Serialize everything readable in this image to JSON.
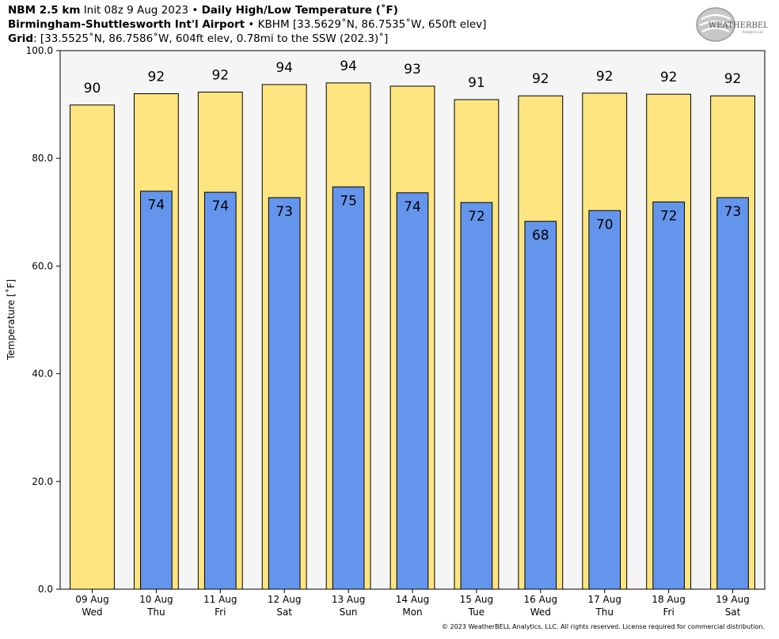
{
  "header": {
    "line1": {
      "model": "NBM 2.5 km",
      "init": "Init 08z 9 Aug 2023",
      "sep": "•",
      "product": "Daily High/Low Temperature (˚F)"
    },
    "line2": {
      "location": "Birmingham-Shuttlesworth Int'l Airport",
      "sep": "•",
      "station": "KBHM [33.5629˚N, 86.7535˚W, 650ft elev]"
    },
    "line3": {
      "label": "Grid",
      "value": ": [33.5525˚N, 86.7586˚W, 604ft elev, 0.78mi to the SSW (202.3)˚]"
    }
  },
  "logo": {
    "text": "WEATHERBELL",
    "sub": "Analytics LLC"
  },
  "footer": "© 2023 WeatherBELL Analytics, LLC. All rights reserved. License required for commercial distribution.",
  "colors": {
    "high": "#ffe57f",
    "low": "#6495ed",
    "plot_bg": "#f5f5f5",
    "edge": "#000000"
  },
  "chart_data": {
    "type": "bar",
    "ylabel": "Temperature [˚F]",
    "ylim": [
      0,
      100
    ],
    "yticks": [
      "0.0",
      "20.0",
      "40.0",
      "60.0",
      "80.0",
      "100.0"
    ],
    "grid": false,
    "categories": [
      {
        "date": "09 Aug",
        "day": "Wed"
      },
      {
        "date": "10 Aug",
        "day": "Thu"
      },
      {
        "date": "11 Aug",
        "day": "Fri"
      },
      {
        "date": "12 Aug",
        "day": "Sat"
      },
      {
        "date": "13 Aug",
        "day": "Sun"
      },
      {
        "date": "14 Aug",
        "day": "Mon"
      },
      {
        "date": "15 Aug",
        "day": "Tue"
      },
      {
        "date": "16 Aug",
        "day": "Wed"
      },
      {
        "date": "17 Aug",
        "day": "Thu"
      },
      {
        "date": "18 Aug",
        "day": "Fri"
      },
      {
        "date": "19 Aug",
        "day": "Sat"
      }
    ],
    "high": {
      "values": [
        89.9,
        92.0,
        92.3,
        93.7,
        94.0,
        93.4,
        90.9,
        91.6,
        92.1,
        91.9,
        91.6
      ],
      "labels": [
        "90",
        "92",
        "92",
        "94",
        "94",
        "93",
        "91",
        "92",
        "92",
        "92",
        "92"
      ]
    },
    "low": {
      "values": [
        null,
        73.9,
        73.7,
        72.7,
        74.7,
        73.6,
        71.8,
        68.3,
        70.3,
        71.9,
        72.7
      ],
      "labels": [
        "",
        "74",
        "74",
        "73",
        "75",
        "74",
        "72",
        "68",
        "70",
        "72",
        "73"
      ]
    }
  }
}
